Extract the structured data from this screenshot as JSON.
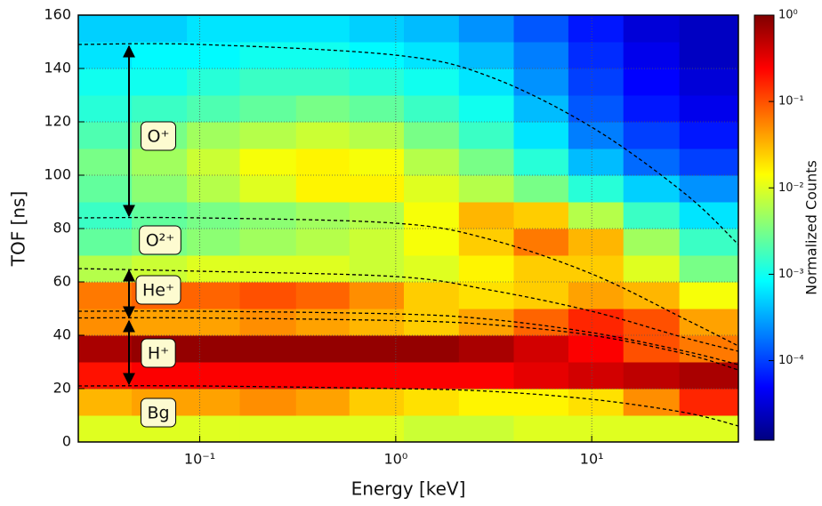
{
  "chart_data": {
    "type": "heatmap",
    "x_label": "Energy [keV]",
    "y_label": "TOF [ns]",
    "colorbar_label": "Normalized Counts",
    "xscale": "log",
    "xlim": [
      0.024,
      56
    ],
    "xticks": [
      {
        "value": 0.1,
        "label": "10⁻¹"
      },
      {
        "value": 1,
        "label": "10⁰"
      },
      {
        "value": 10,
        "label": "10¹"
      }
    ],
    "ylim": [
      0,
      160
    ],
    "yticks": [
      0,
      20,
      40,
      60,
      80,
      100,
      120,
      140,
      160
    ],
    "grid": true,
    "colormap": "jet",
    "clim": [
      1.2e-05,
      1
    ],
    "cticks": [
      {
        "value": 1,
        "label": "10⁰"
      },
      {
        "value": 0.1,
        "label": "10⁻¹"
      },
      {
        "value": 0.01,
        "label": "10⁻²"
      },
      {
        "value": 0.001,
        "label": "10⁻³"
      },
      {
        "value": 0.0001,
        "label": "10⁻⁴"
      }
    ],
    "x_bins": [
      0.024,
      0.045,
      0.086,
      0.16,
      0.31,
      0.58,
      1.1,
      2.1,
      4,
      7.6,
      14.5,
      28,
      56
    ],
    "y_bins": [
      0,
      10,
      20,
      30,
      40,
      50,
      60,
      70,
      80,
      90,
      100,
      110,
      120,
      130,
      140,
      150,
      160
    ],
    "z": [
      [
        0.01,
        0.01,
        0.01,
        0.01,
        0.01,
        0.01,
        0.008,
        0.008,
        0.01,
        0.01,
        0.01,
        0.01
      ],
      [
        0.032,
        0.04,
        0.04,
        0.05,
        0.04,
        0.025,
        0.02,
        0.016,
        0.016,
        0.02,
        0.05,
        0.16
      ],
      [
        0.2,
        0.25,
        0.25,
        0.25,
        0.25,
        0.25,
        0.25,
        0.25,
        0.32,
        0.4,
        0.5,
        0.63
      ],
      [
        0.63,
        0.8,
        0.8,
        0.8,
        0.8,
        0.8,
        0.8,
        0.63,
        0.4,
        0.25,
        0.1,
        0.063
      ],
      [
        0.05,
        0.04,
        0.04,
        0.05,
        0.04,
        0.032,
        0.025,
        0.04,
        0.08,
        0.16,
        0.1,
        0.04
      ],
      [
        0.063,
        0.08,
        0.08,
        0.1,
        0.08,
        0.05,
        0.025,
        0.02,
        0.025,
        0.04,
        0.032,
        0.013
      ],
      [
        0.0063,
        0.008,
        0.01,
        0.01,
        0.01,
        0.008,
        0.01,
        0.016,
        0.025,
        0.025,
        0.01,
        0.0032
      ],
      [
        0.0025,
        0.0032,
        0.004,
        0.005,
        0.0063,
        0.008,
        0.013,
        0.025,
        0.063,
        0.032,
        0.005,
        0.0016
      ],
      [
        0.0016,
        0.0025,
        0.0032,
        0.004,
        0.005,
        0.0063,
        0.013,
        0.032,
        0.025,
        0.0063,
        0.0016,
        0.00063
      ],
      [
        0.0025,
        0.004,
        0.0063,
        0.01,
        0.016,
        0.016,
        0.01,
        0.0063,
        0.0032,
        0.0013,
        0.0005,
        0.00025
      ],
      [
        0.0032,
        0.005,
        0.008,
        0.013,
        0.016,
        0.013,
        0.0063,
        0.0032,
        0.0013,
        0.0004,
        0.00016,
        0.0001
      ],
      [
        0.002,
        0.0032,
        0.005,
        0.0063,
        0.008,
        0.0063,
        0.0032,
        0.0016,
        0.00063,
        0.0002,
        0.0001,
        6.3e-05
      ],
      [
        0.0013,
        0.0016,
        0.002,
        0.0025,
        0.0032,
        0.0025,
        0.0016,
        0.001,
        0.0004,
        0.00013,
        6.3e-05,
        4e-05
      ],
      [
        0.001,
        0.001,
        0.0013,
        0.0016,
        0.0016,
        0.0013,
        0.001,
        0.00063,
        0.00025,
        0.0001,
        5e-05,
        3.2e-05
      ],
      [
        0.00063,
        0.0008,
        0.0008,
        0.001,
        0.001,
        0.0008,
        0.00063,
        0.0004,
        0.0002,
        8e-05,
        4e-05,
        2.5e-05
      ],
      [
        0.0005,
        0.0005,
        0.00063,
        0.00063,
        0.00063,
        0.0005,
        0.0004,
        0.00025,
        0.00013,
        6.3e-05,
        3.2e-05,
        2.5e-05
      ]
    ],
    "curves": {
      "x": [
        0.024,
        0.1,
        1,
        3,
        10,
        30,
        56
      ],
      "lines": [
        [
          149,
          149,
          145,
          137,
          118,
          93,
          74
        ],
        [
          84,
          84,
          82,
          76,
          63,
          46,
          36
        ],
        [
          65,
          64,
          62,
          57,
          49,
          39,
          34
        ],
        [
          49,
          49,
          48,
          46,
          41,
          34,
          29
        ],
        [
          46.5,
          46.5,
          45.5,
          44,
          40,
          33,
          27
        ],
        [
          21,
          21,
          20,
          19,
          16,
          11,
          6
        ]
      ]
    },
    "annotations": [
      {
        "text": "O⁺",
        "range": [
          149,
          84
        ]
      },
      {
        "text": "O²⁺"
      },
      {
        "text": "He⁺",
        "range": [
          65,
          46
        ]
      },
      {
        "text": "H⁺",
        "range": [
          46,
          21
        ]
      },
      {
        "text": "Bg"
      }
    ]
  }
}
